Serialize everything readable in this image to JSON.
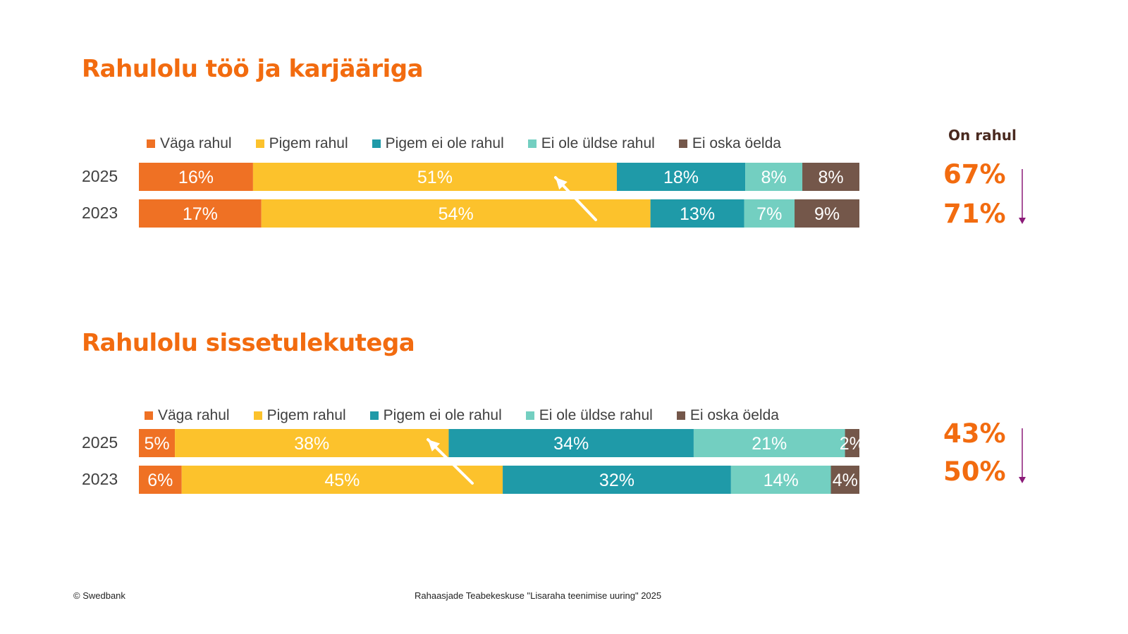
{
  "colors": {
    "accent": "#f26b0f",
    "trend_arrow": "#8b1a78",
    "highlight_arrow": "#ffffff"
  },
  "on_rahul_label": "On rahul",
  "chart_data": [
    {
      "type": "bar",
      "orientation": "horizontal-stacked-100",
      "title": "Rahulolu töö ja karjääriga",
      "categories": [
        "2025",
        "2023"
      ],
      "series": [
        {
          "name": "Väga rahul",
          "color": "#ef7124",
          "values": [
            16,
            17
          ],
          "labels": [
            "16%",
            "17%"
          ]
        },
        {
          "name": "Pigem rahul",
          "color": "#fcc22c",
          "values": [
            51,
            54
          ],
          "labels": [
            "51%",
            "54%"
          ]
        },
        {
          "name": "Pigem ei ole rahul",
          "color": "#1f9aa8",
          "values": [
            18,
            13
          ],
          "labels": [
            "18%",
            "13%"
          ]
        },
        {
          "name": "Ei ole üldse rahul",
          "color": "#73cfc1",
          "values": [
            8,
            7
          ],
          "labels": [
            "8%",
            "7%"
          ]
        },
        {
          "name": "Ei oska öelda",
          "color": "#74574a",
          "values": [
            8,
            9
          ],
          "labels": [
            "8%",
            "9%"
          ]
        }
      ],
      "totals_satisfied": [
        "67%",
        "71%"
      ],
      "legend_position": "top",
      "grid": false
    },
    {
      "type": "bar",
      "orientation": "horizontal-stacked-100",
      "title": "Rahulolu sissetulekutega",
      "categories": [
        "2025",
        "2023"
      ],
      "series": [
        {
          "name": "Väga rahul",
          "color": "#ef7124",
          "values": [
            5,
            6
          ],
          "labels": [
            "5%",
            "6%"
          ]
        },
        {
          "name": "Pigem rahul",
          "color": "#fcc22c",
          "values": [
            38,
            45
          ],
          "labels": [
            "38%",
            "45%"
          ]
        },
        {
          "name": "Pigem ei ole rahul",
          "color": "#1f9aa8",
          "values": [
            34,
            32
          ],
          "labels": [
            "34%",
            "32%"
          ]
        },
        {
          "name": "Ei ole üldse rahul",
          "color": "#73cfc1",
          "values": [
            21,
            14
          ],
          "labels": [
            "21%",
            "14%"
          ]
        },
        {
          "name": "Ei oska öelda",
          "color": "#74574a",
          "values": [
            2,
            4
          ],
          "labels": [
            "2%",
            "4%"
          ]
        }
      ],
      "totals_satisfied": [
        "43%",
        "50%"
      ],
      "legend_position": "top",
      "grid": false
    }
  ],
  "footer": {
    "left": "© Swedbank",
    "center": "Rahaasjade Teabekeskuse \"Lisaraha teenimise uuring\" 2025"
  }
}
